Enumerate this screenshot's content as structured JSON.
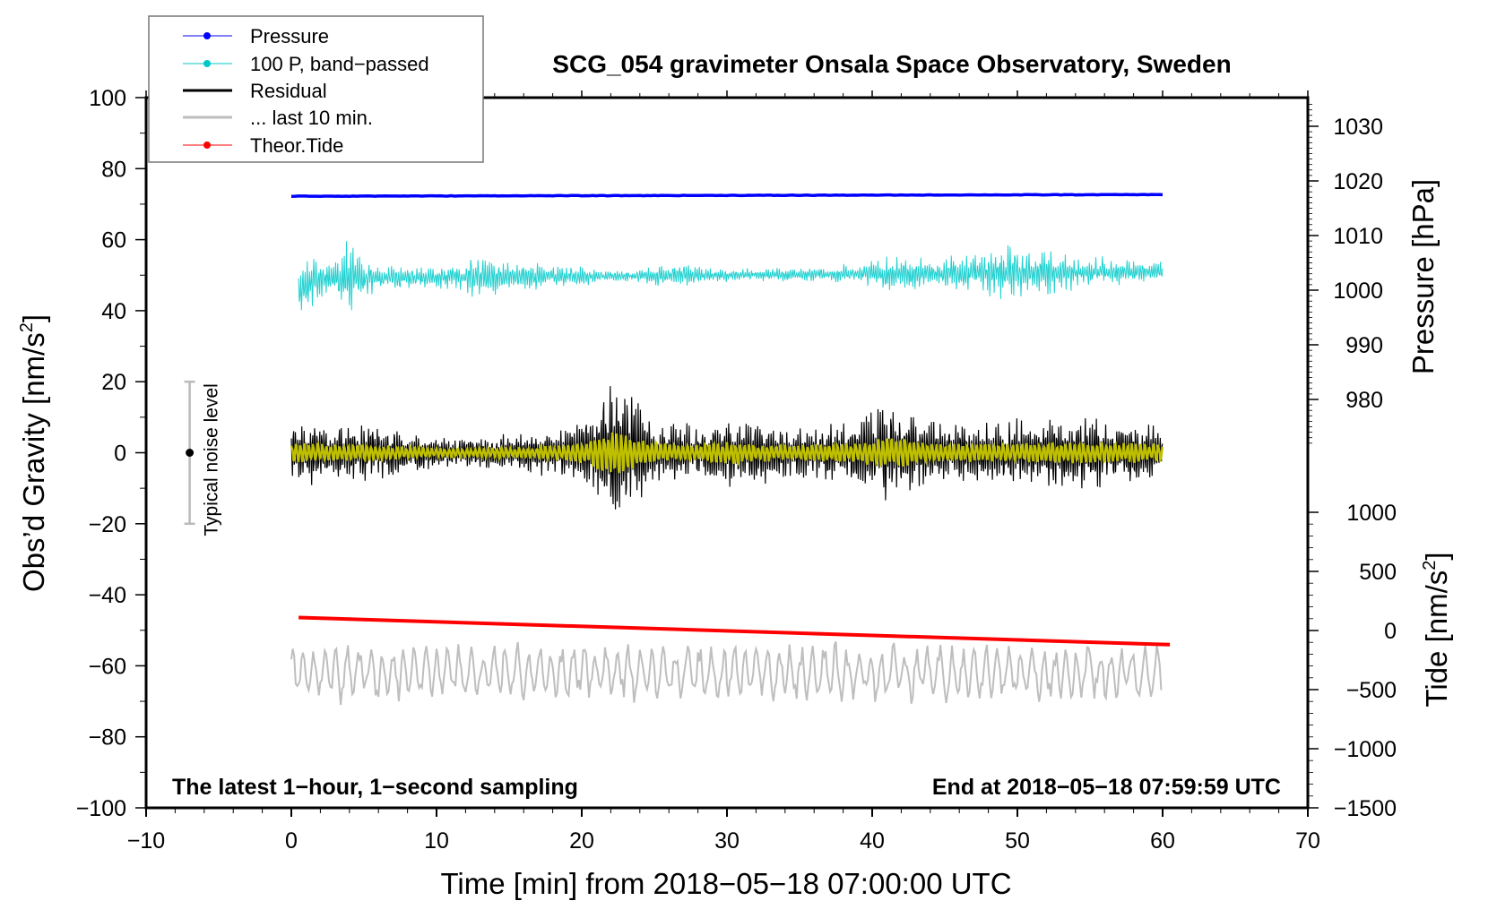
{
  "chart_data": {
    "type": "line",
    "title": "SCG_054 gravimeter Onsala Space Observatory, Sweden",
    "xlabel": "Time [min] from 2018−05−18 07:00:00 UTC",
    "ylabel_left": "Obs’d Gravity [nm/s",
    "ylabel_left_sup": "2",
    "ylabel_left_end": "]",
    "ylabel_right_pressure": "Pressure [hPa]",
    "ylabel_right_tide": "Tide [nm/s",
    "ylabel_right_tide_sup": "2",
    "ylabel_right_tide_end": "]",
    "xlim": [
      -10,
      70
    ],
    "ylim": [
      -100,
      100
    ],
    "x_ticks": [
      "−10",
      "0",
      "10",
      "20",
      "30",
      "40",
      "50",
      "60",
      "70"
    ],
    "x_tick_values": [
      -10,
      0,
      10,
      20,
      30,
      40,
      50,
      60,
      70
    ],
    "y_ticks": [
      "100",
      "80",
      "60",
      "40",
      "20",
      "0",
      "−20",
      "−40",
      "−60",
      "−80",
      "−100"
    ],
    "y_tick_values": [
      100,
      80,
      60,
      40,
      20,
      0,
      -20,
      -40,
      -60,
      -80,
      -100
    ],
    "pressure_ticks": [
      "1030",
      "1020",
      "1010",
      "1000",
      "990",
      "980"
    ],
    "pressure_tick_values": [
      1030,
      1020,
      1010,
      1000,
      990,
      980
    ],
    "tide_ticks": [
      "1000",
      "500",
      "0",
      "−500",
      "−1000",
      "−1500"
    ],
    "tide_tick_values": [
      1000,
      500,
      0,
      -500,
      -1000,
      -1500
    ],
    "legend": {
      "placement": "top-left",
      "entries": [
        {
          "label": "Pressure",
          "color": "#0000ff",
          "marker": "dot"
        },
        {
          "label": "100 P, band−passed",
          "color": "#00c8c8",
          "marker": "dot"
        },
        {
          "label": "Residual",
          "color": "#000000",
          "marker": "line"
        },
        {
          "label": "... last 10 min.",
          "color": "#bebebe",
          "marker": "line"
        },
        {
          "label": "Theor.Tide",
          "color": "#ff0000",
          "marker": "dot"
        }
      ]
    },
    "annotations": {
      "left": "The latest 1−hour, 1−second sampling",
      "right": "End at 2018−05−18 07:59:59 UTC",
      "noise": "Typical noise level",
      "noise_range": [
        -20,
        20
      ],
      "noise_x": -7
    },
    "series": [
      {
        "name": "Pressure",
        "axis": "pressure_hPa",
        "color": "#0000ff",
        "x_range": [
          0,
          60
        ],
        "start": 1017.2,
        "end": 1017.5
      },
      {
        "name": "100 P, band-passed",
        "axis": "gravity",
        "color": "#20d0d0",
        "x_range": [
          0.5,
          60
        ],
        "center_start": 45,
        "center_end": 51,
        "amplitude_per_min": [
          8,
          8,
          6,
          5,
          12,
          6,
          4,
          5,
          4,
          3,
          3,
          4,
          4,
          10,
          5,
          5,
          4,
          4,
          3,
          3,
          3,
          2,
          2,
          2,
          2,
          3,
          3,
          4,
          3,
          2,
          2,
          2,
          2,
          2,
          2,
          2,
          2,
          2,
          3,
          3,
          4,
          6,
          6,
          5,
          4,
          5,
          6,
          6,
          7,
          8,
          8,
          7,
          7,
          6,
          5,
          5,
          5,
          4,
          3,
          3,
          3
        ]
      },
      {
        "name": "Residual",
        "axis": "gravity",
        "color": "#000000",
        "x_range": [
          0,
          60
        ],
        "center": 0,
        "amplitude_per_min": [
          8,
          9,
          8,
          7,
          7,
          8,
          7,
          6,
          5,
          5,
          4,
          4,
          4,
          4,
          5,
          5,
          5,
          6,
          6,
          7,
          9,
          14,
          20,
          18,
          12,
          9,
          8,
          8,
          7,
          9,
          10,
          9,
          8,
          8,
          7,
          7,
          7,
          8,
          8,
          9,
          11,
          13,
          13,
          11,
          9,
          8,
          8,
          8,
          8,
          9,
          9,
          9,
          9,
          9,
          9,
          10,
          9,
          9,
          9,
          8,
          8
        ]
      },
      {
        "name": "Residual smoothed",
        "axis": "gravity",
        "color": "#c8c800",
        "x_range": [
          0,
          60
        ],
        "center": 0,
        "amplitude_factor": 0.3
      },
      {
        "name": "... last 10 min.",
        "axis": "gravity",
        "color": "#bebebe",
        "x_range": [
          0,
          60
        ],
        "center": -62,
        "amplitude": 8
      },
      {
        "name": "Theor.Tide",
        "axis": "tide_nm_s2",
        "color": "#ff0000",
        "x_range": [
          0.5,
          60.5
        ],
        "start": 110,
        "end": -120
      }
    ]
  }
}
